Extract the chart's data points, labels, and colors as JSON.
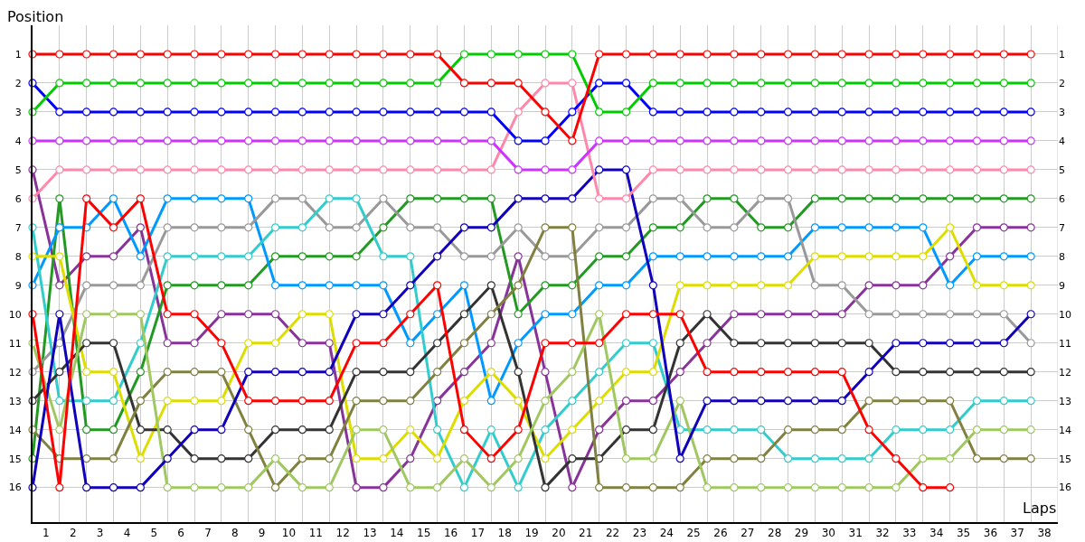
{
  "chart_data": {
    "type": "line",
    "xlabel": "Laps",
    "ylabel": "Position",
    "marker": "circle",
    "grid": true,
    "x": [
      0,
      1,
      2,
      3,
      4,
      5,
      6,
      7,
      8,
      9,
      10,
      11,
      12,
      13,
      14,
      15,
      16,
      17,
      18,
      19,
      20,
      21,
      22,
      23,
      24,
      25,
      26,
      27,
      28,
      29,
      30,
      31,
      32,
      33,
      34,
      35,
      36,
      37
    ],
    "xlim": [
      0,
      38
    ],
    "xticks": [
      {
        "value": 0.5,
        "label": "1"
      },
      {
        "value": 1.5,
        "label": "2"
      },
      {
        "value": 2.5,
        "label": "3"
      },
      {
        "value": 3.5,
        "label": "4"
      },
      {
        "value": 4.5,
        "label": "5"
      },
      {
        "value": 5.5,
        "label": "6"
      },
      {
        "value": 6.5,
        "label": "7"
      },
      {
        "value": 7.5,
        "label": "8"
      },
      {
        "value": 8.5,
        "label": "9"
      },
      {
        "value": 9.5,
        "label": "10"
      },
      {
        "value": 10.5,
        "label": "11"
      },
      {
        "value": 11.5,
        "label": "12"
      },
      {
        "value": 12.5,
        "label": "13"
      },
      {
        "value": 13.5,
        "label": "14"
      },
      {
        "value": 14.5,
        "label": "15"
      },
      {
        "value": 15.5,
        "label": "16"
      },
      {
        "value": 16.5,
        "label": "17"
      },
      {
        "value": 17.5,
        "label": "18"
      },
      {
        "value": 18.5,
        "label": "19"
      },
      {
        "value": 19.5,
        "label": "20"
      },
      {
        "value": 20.5,
        "label": "21"
      },
      {
        "value": 21.5,
        "label": "22"
      },
      {
        "value": 22.5,
        "label": "23"
      },
      {
        "value": 23.5,
        "label": "24"
      },
      {
        "value": 24.5,
        "label": "25"
      },
      {
        "value": 25.5,
        "label": "26"
      },
      {
        "value": 26.5,
        "label": "27"
      },
      {
        "value": 27.5,
        "label": "28"
      },
      {
        "value": 28.5,
        "label": "29"
      },
      {
        "value": 29.5,
        "label": "30"
      },
      {
        "value": 30.5,
        "label": "31"
      },
      {
        "value": 31.5,
        "label": "32"
      },
      {
        "value": 32.5,
        "label": "33"
      },
      {
        "value": 33.5,
        "label": "34"
      },
      {
        "value": 34.5,
        "label": "35"
      },
      {
        "value": 35.5,
        "label": "36"
      },
      {
        "value": 36.5,
        "label": "37"
      },
      {
        "value": 37.5,
        "label": "38"
      }
    ],
    "ylim": [
      17.2,
      0
    ],
    "yticks": [
      1,
      2,
      3,
      4,
      5,
      6,
      7,
      8,
      9,
      10,
      11,
      12,
      13,
      14,
      15,
      16
    ],
    "y2lim": [
      17.2,
      0
    ],
    "y2ticks": [
      1,
      2,
      3,
      4,
      5,
      6,
      7,
      8,
      9,
      10,
      11,
      12,
      13,
      14,
      15,
      16
    ],
    "series": [
      {
        "color": "#883399",
        "values": [
          5,
          9,
          8,
          8,
          7,
          11,
          11,
          10,
          10,
          10,
          11,
          11,
          16,
          16,
          15,
          13,
          12,
          11,
          8,
          12,
          16,
          14,
          13,
          13,
          12,
          11,
          10,
          10,
          10,
          10,
          10,
          9,
          9,
          9,
          8,
          7,
          7,
          7
        ]
      },
      {
        "color": "#229922",
        "values": [
          15,
          6,
          14,
          14,
          12,
          9,
          9,
          9,
          9,
          8,
          8,
          8,
          8,
          7,
          6,
          6,
          6,
          6,
          10,
          9,
          9,
          8,
          8,
          7,
          7,
          6,
          6,
          7,
          7,
          6,
          6,
          6,
          6,
          6,
          6,
          6,
          6,
          6
        ]
      },
      {
        "color": "#0099ff",
        "values": [
          9,
          7,
          7,
          6,
          8,
          6,
          6,
          6,
          6,
          9,
          9,
          9,
          9,
          9,
          11,
          10,
          9,
          13,
          11,
          10,
          10,
          9,
          9,
          8,
          8,
          8,
          8,
          8,
          8,
          7,
          7,
          7,
          7,
          7,
          9,
          8,
          8,
          8
        ]
      },
      {
        "color": "#999999",
        "values": [
          12,
          11,
          9,
          9,
          9,
          7,
          7,
          7,
          7,
          6,
          6,
          7,
          7,
          6,
          7,
          7,
          8,
          8,
          7,
          8,
          8,
          7,
          7,
          6,
          6,
          7,
          7,
          6,
          6,
          9,
          9,
          10,
          10,
          10,
          10,
          10,
          10,
          11
        ]
      },
      {
        "color": "#33cccc",
        "values": [
          7,
          13,
          13,
          13,
          11,
          8,
          8,
          8,
          8,
          7,
          7,
          6,
          6,
          8,
          8,
          14,
          16,
          14,
          16,
          14,
          13,
          12,
          11,
          11,
          14,
          14,
          14,
          14,
          15,
          15,
          15,
          15,
          14,
          14,
          14,
          13,
          13,
          13
        ]
      },
      {
        "color": "#dddd00",
        "values": [
          8,
          8,
          12,
          12,
          15,
          13,
          13,
          13,
          11,
          11,
          10,
          10,
          15,
          15,
          14,
          15,
          13,
          12,
          13,
          15,
          14,
          13,
          12,
          12,
          9,
          9,
          9,
          9,
          9,
          8,
          8,
          8,
          8,
          8,
          7,
          9,
          9,
          9
        ]
      },
      {
        "color": "#333333",
        "values": [
          13,
          12,
          11,
          11,
          14,
          14,
          15,
          15,
          15,
          14,
          14,
          14,
          12,
          12,
          12,
          11,
          10,
          9,
          12,
          16,
          15,
          15,
          14,
          14,
          11,
          10,
          11,
          11,
          11,
          11,
          11,
          11,
          12,
          12,
          12,
          12,
          12,
          12
        ]
      },
      {
        "color": "#808040",
        "values": [
          14,
          15,
          15,
          15,
          13,
          12,
          12,
          12,
          14,
          16,
          15,
          15,
          13,
          13,
          13,
          12,
          11,
          10,
          9,
          7,
          7,
          16,
          16,
          16,
          16,
          15,
          15,
          15,
          14,
          14,
          14,
          13,
          13,
          13,
          13,
          15,
          15,
          15
        ]
      },
      {
        "color": "#a0c860",
        "values": [
          11,
          14,
          10,
          10,
          10,
          16,
          16,
          16,
          16,
          15,
          16,
          16,
          14,
          14,
          16,
          16,
          15,
          16,
          15,
          13,
          12,
          10,
          15,
          15,
          13,
          16,
          16,
          16,
          16,
          16,
          16,
          16,
          16,
          15,
          15,
          14,
          14,
          14
        ]
      },
      {
        "color": "#1100bb",
        "values": [
          16,
          10,
          16,
          16,
          16,
          15,
          14,
          14,
          12,
          12,
          12,
          12,
          10,
          10,
          9,
          8,
          7,
          7,
          6,
          6,
          6,
          5,
          5,
          9,
          15,
          13,
          13,
          13,
          13,
          13,
          13,
          12,
          11,
          11,
          11,
          11,
          11,
          10
        ]
      },
      {
        "color": "#ff0000",
        "values": [
          10,
          16,
          6,
          7,
          6,
          10,
          10,
          11,
          13,
          13,
          13,
          13,
          11,
          11,
          10,
          9,
          14,
          15,
          14,
          11,
          11,
          11,
          10,
          10,
          10,
          12,
          12,
          12,
          12,
          12,
          12,
          14,
          15,
          16,
          16,
          null,
          null,
          null
        ]
      },
      {
        "color": "#ff88aa",
        "values": [
          6,
          5,
          5,
          5,
          5,
          5,
          5,
          5,
          5,
          5,
          5,
          5,
          5,
          5,
          5,
          5,
          5,
          5,
          3,
          2,
          2,
          6,
          6,
          5,
          5,
          5,
          5,
          5,
          5,
          5,
          5,
          5,
          5,
          5,
          5,
          5,
          5,
          5
        ]
      },
      {
        "color": "#cc33ff",
        "values": [
          4,
          4,
          4,
          4,
          4,
          4,
          4,
          4,
          4,
          4,
          4,
          4,
          4,
          4,
          4,
          4,
          4,
          4,
          5,
          5,
          5,
          4,
          4,
          4,
          4,
          4,
          4,
          4,
          4,
          4,
          4,
          4,
          4,
          4,
          4,
          4,
          4,
          4
        ]
      },
      {
        "color": "#0000ff",
        "values": [
          2,
          3,
          3,
          3,
          3,
          3,
          3,
          3,
          3,
          3,
          3,
          3,
          3,
          3,
          3,
          3,
          3,
          3,
          4,
          4,
          3,
          2,
          2,
          3,
          3,
          3,
          3,
          3,
          3,
          3,
          3,
          3,
          3,
          3,
          3,
          3,
          3,
          3
        ]
      },
      {
        "color": "#00cc00",
        "values": [
          3,
          2,
          2,
          2,
          2,
          2,
          2,
          2,
          2,
          2,
          2,
          2,
          2,
          2,
          2,
          2,
          1,
          1,
          1,
          1,
          1,
          3,
          3,
          2,
          2,
          2,
          2,
          2,
          2,
          2,
          2,
          2,
          2,
          2,
          2,
          2,
          2,
          2
        ]
      },
      {
        "color": "#ff0000",
        "values": [
          1,
          1,
          1,
          1,
          1,
          1,
          1,
          1,
          1,
          1,
          1,
          1,
          1,
          1,
          1,
          1,
          2,
          2,
          2,
          3,
          4,
          1,
          1,
          1,
          1,
          1,
          1,
          1,
          1,
          1,
          1,
          1,
          1,
          1,
          1,
          1,
          1,
          1
        ]
      }
    ]
  }
}
